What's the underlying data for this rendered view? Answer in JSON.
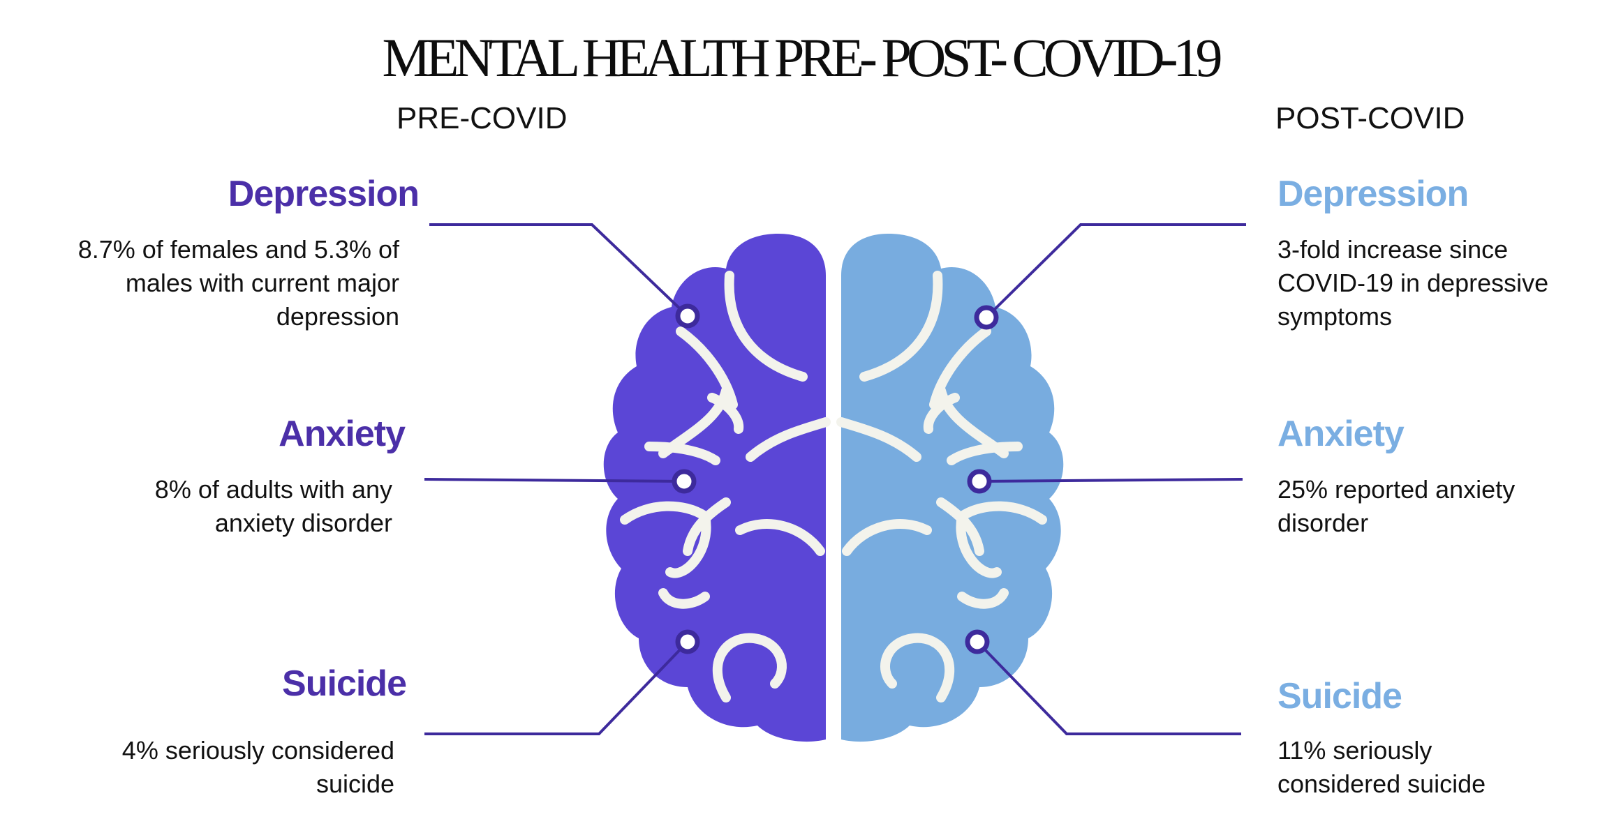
{
  "title": "MENTAL HEALTH PRE- POST- COVID-19",
  "columns": {
    "pre": "PRE-COVID",
    "post": "POST-COVID"
  },
  "pre": [
    {
      "heading": "Depression",
      "text": "8.7% of females and 5.3% of males with current major depression"
    },
    {
      "heading": "Anxiety",
      "text": "8% of adults with any anxiety disorder"
    },
    {
      "heading": "Suicide",
      "text": "4% seriously considered suicide"
    }
  ],
  "post": [
    {
      "heading": "Depression",
      "text": "3-fold increase since COVID-19 in depressive symptoms"
    },
    {
      "heading": "Anxiety",
      "text": "25% reported anxiety disorder"
    },
    {
      "heading": "Suicide",
      "text": "11% seriously considered suicide"
    }
  ],
  "colors": {
    "pre": "#5b46d6",
    "pre_text": "#4b2fa8",
    "post": "#78acdf",
    "post_text": "#7aaee2",
    "line": "#3d2a9c"
  }
}
